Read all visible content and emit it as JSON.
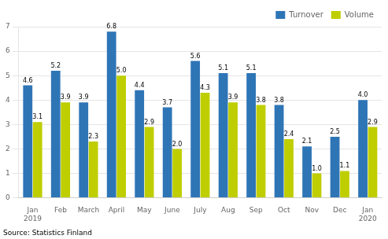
{
  "chart_data": {
    "type": "bar",
    "categories": [
      "Jan\n2019",
      "Feb",
      "March",
      "April",
      "May",
      "June",
      "July",
      "Aug",
      "Sep",
      "Oct",
      "Nov",
      "Dec",
      "Jan\n2020"
    ],
    "series": [
      {
        "name": "Turnover",
        "color": "#2E75B6",
        "values": [
          4.6,
          5.2,
          3.9,
          6.8,
          4.4,
          3.7,
          5.6,
          5.1,
          5.1,
          3.8,
          2.1,
          2.5,
          4.0
        ],
        "value_labels": [
          "4.6",
          "5.2",
          "3.9",
          "6.8",
          "4.4",
          "3.7",
          "5.6",
          "5.1",
          "5.1",
          "3.8",
          "2.1",
          "2.5",
          "4.0"
        ]
      },
      {
        "name": "Volume",
        "color": "#BFCE00",
        "values": [
          3.1,
          3.9,
          2.3,
          5.0,
          2.9,
          2.0,
          4.3,
          3.9,
          3.8,
          2.4,
          1.0,
          1.1,
          2.9
        ],
        "value_labels": [
          "3.1",
          "3.9",
          "2.3",
          "5.0",
          "2.9",
          "2.0",
          "4.3",
          "3.9",
          "3.8",
          "2.4",
          "1.0",
          "1.1",
          "2.9"
        ]
      }
    ],
    "ylim": [
      0,
      7
    ],
    "yticks": [
      0,
      1,
      2,
      3,
      4,
      5,
      6,
      7
    ],
    "grid": true,
    "legend": "upper right",
    "data_labels": true,
    "annotations": [
      "Source: Statistics Finland"
    ]
  }
}
